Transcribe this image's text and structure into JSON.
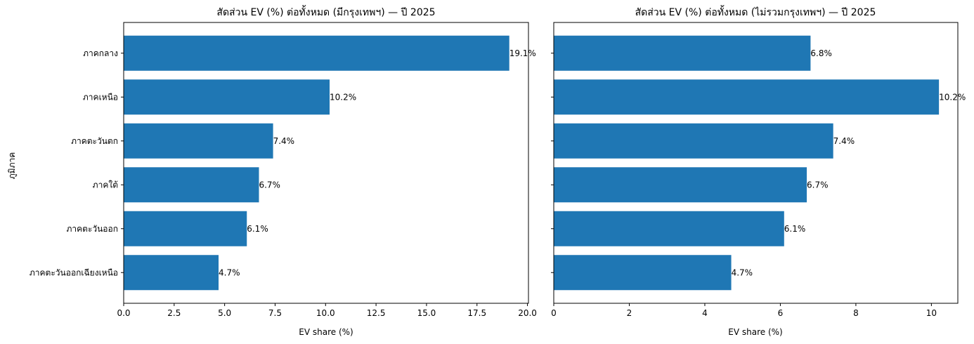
{
  "figure": {
    "bar_color": "#1f77b4",
    "axes_color": "#000000",
    "background": "#ffffff"
  },
  "chart_data": [
    {
      "type": "bar",
      "orientation": "horizontal",
      "title": "สัดส่วน EV (%) ต่อทั้งหมด (มีกรุงเทพฯ) — ปี 2025",
      "xlabel": "EV share (%)",
      "ylabel": "ภูมิภาค",
      "categories": [
        "ภาคกลาง",
        "ภาคเหนือ",
        "ภาคตะวันตก",
        "ภาคใต้",
        "ภาคตะวันออก",
        "ภาคตะวันออกเฉียงเหนือ"
      ],
      "values": [
        19.1,
        10.2,
        7.4,
        6.7,
        6.1,
        4.7
      ],
      "data_labels": [
        "19.1%",
        "10.2%",
        "7.4%",
        "6.7%",
        "6.1%",
        "4.7%"
      ],
      "xlim": [
        0,
        20.05
      ],
      "xticks": [
        0,
        2.5,
        5,
        7.5,
        10,
        12.5,
        15,
        17.5,
        20
      ],
      "xtick_labels": [
        "0.0",
        "2.5",
        "5.0",
        "7.5",
        "10.0",
        "12.5",
        "15.0",
        "17.5",
        "20.0"
      ],
      "show_ytick_labels": true,
      "grid": false,
      "legend": "none"
    },
    {
      "type": "bar",
      "orientation": "horizontal",
      "title": "สัดส่วน EV (%) ต่อทั้งหมด (ไม่รวมกรุงเทพฯ) — ปี 2025",
      "xlabel": "EV share (%)",
      "ylabel": "",
      "categories": [
        "ภาคกลาง",
        "ภาคเหนือ",
        "ภาคตะวันตก",
        "ภาคใต้",
        "ภาคตะวันออก",
        "ภาคตะวันออกเฉียงเหนือ"
      ],
      "values": [
        6.8,
        10.2,
        7.4,
        6.7,
        6.1,
        4.7
      ],
      "data_labels": [
        "6.8%",
        "10.2%",
        "7.4%",
        "6.7%",
        "6.1%",
        "4.7%"
      ],
      "xlim": [
        0,
        10.7
      ],
      "xticks": [
        0,
        2,
        4,
        6,
        8,
        10
      ],
      "xtick_labels": [
        "0",
        "2",
        "4",
        "6",
        "8",
        "10"
      ],
      "show_ytick_labels": false,
      "grid": false,
      "legend": "none"
    }
  ]
}
